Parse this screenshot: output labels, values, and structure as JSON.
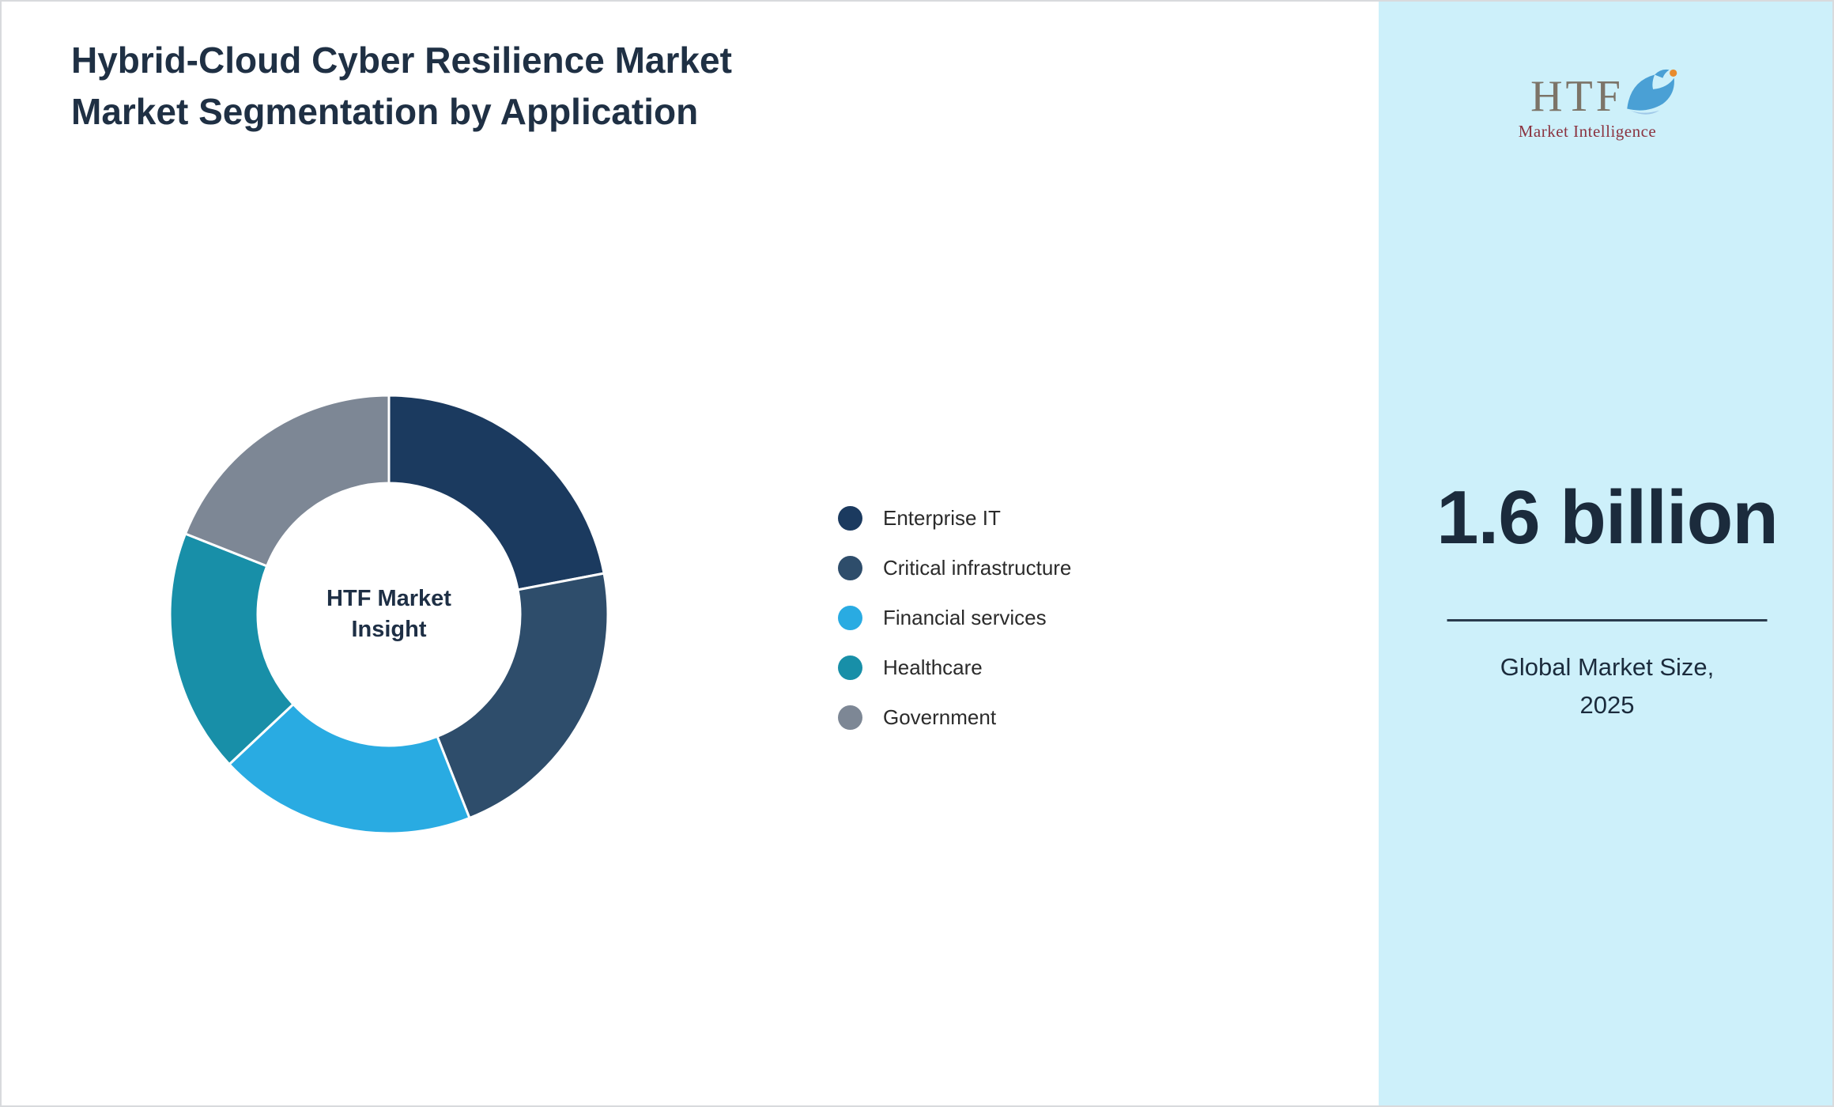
{
  "page": {
    "title": "Hybrid-Cloud Cyber Resilience Market Market Segmentation by Application"
  },
  "chart_data": {
    "type": "pie",
    "variant": "donut",
    "title": "Hybrid-Cloud Cyber Resilience Market Market Segmentation by Application",
    "center_label": "HTF Market Insight",
    "categories": [
      "Enterprise IT",
      "Critical infrastructure",
      "Financial services",
      "Healthcare",
      "Government"
    ],
    "values": [
      22,
      22,
      19,
      18,
      19
    ],
    "colors": [
      "#1b3a5f",
      "#2e4d6b",
      "#29abe2",
      "#188fa8",
      "#7d8795"
    ],
    "legend_position": "right",
    "start_angle_deg": 0,
    "clockwise": true
  },
  "panel": {
    "background": "#cdf0fa",
    "logo_text": "HTF",
    "logo_subtext": "Market Intelligence",
    "market_size_value": "1.6 billion",
    "label_line1": "Global Market Size,",
    "label_line2": "2025"
  }
}
